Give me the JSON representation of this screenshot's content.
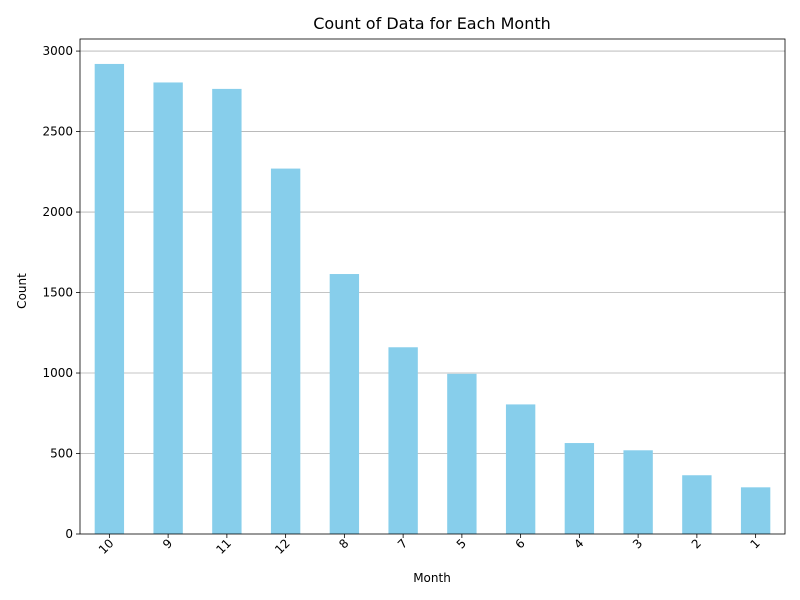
{
  "chart_data": {
    "type": "bar",
    "title": "Count of Data for Each Month",
    "xlabel": "Month",
    "ylabel": "Count",
    "categories": [
      "10",
      "9",
      "11",
      "12",
      "8",
      "7",
      "5",
      "6",
      "4",
      "3",
      "2",
      "1"
    ],
    "values": [
      2920,
      2805,
      2765,
      2270,
      1615,
      1160,
      995,
      805,
      565,
      520,
      365,
      290
    ],
    "ylim": [
      0,
      3075
    ],
    "yticks": [
      0,
      500,
      1000,
      1500,
      2000,
      2500,
      3000
    ],
    "grid": "y-major",
    "xtick_rotation": 45,
    "bar_color": "#87ceeb",
    "grid_color": "#b0b0b0",
    "legend": "none"
  }
}
